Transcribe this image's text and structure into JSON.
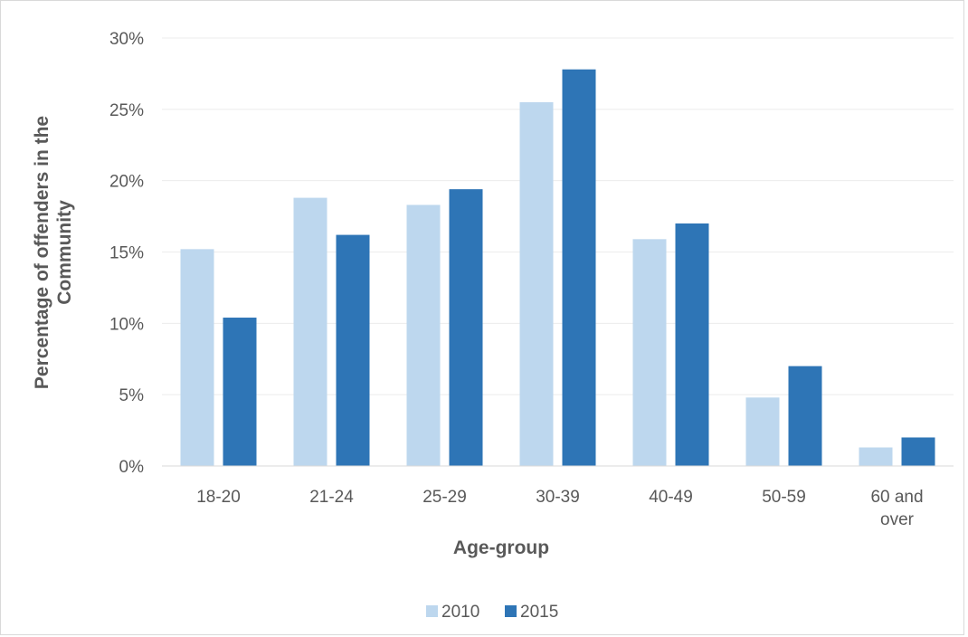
{
  "chart_data": {
    "type": "bar",
    "title": "",
    "xlabel": "Age-group",
    "ylabel": "Percentage of offenders in the Community",
    "ylabel_lines": [
      "Percentage of offenders  in the",
      "Community"
    ],
    "ylim": [
      0,
      30
    ],
    "yticks": [
      "0%",
      "5%",
      "10%",
      "15%",
      "20%",
      "25%",
      "30%"
    ],
    "ytick_values": [
      0,
      5,
      10,
      15,
      20,
      25,
      30
    ],
    "grid": true,
    "legend_position": "bottom",
    "categories": [
      "18-20",
      "21-24",
      "25-29",
      "30-39",
      "40-49",
      "50-59",
      "60 and over"
    ],
    "category_lines": [
      [
        "18-20"
      ],
      [
        "21-24"
      ],
      [
        "25-29"
      ],
      [
        "30-39"
      ],
      [
        "40-49"
      ],
      [
        "50-59"
      ],
      [
        "60 and",
        "over"
      ]
    ],
    "series": [
      {
        "name": "2010",
        "color": "#bdd7ee",
        "values": [
          15.2,
          18.8,
          18.3,
          25.5,
          15.9,
          4.8,
          1.3
        ]
      },
      {
        "name": "2015",
        "color": "#2e75b6",
        "values": [
          10.4,
          16.2,
          19.4,
          27.8,
          17.0,
          7.0,
          2.0
        ]
      }
    ]
  }
}
